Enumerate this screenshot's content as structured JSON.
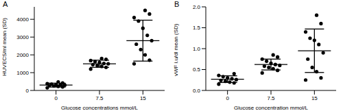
{
  "chart_data": [
    {
      "type": "scatter",
      "title": "A",
      "x_label": "Glucose concentrations mmol/L",
      "y_label": "HUVECS/ml mean (SD)",
      "categories": [
        "0",
        "7.5",
        "15"
      ],
      "values": [
        [
          150,
          200,
          230,
          260,
          280,
          300,
          310,
          330,
          350,
          380,
          420,
          480
        ],
        [
          1200,
          1300,
          1350,
          1400,
          1450,
          1500,
          1520,
          1580,
          1620,
          1680,
          1750,
          1800
        ],
        [
          1500,
          1700,
          2000,
          2300,
          2600,
          2800,
          3100,
          3500,
          3900,
          4100,
          4300,
          4500
        ]
      ],
      "mean": [
        300,
        1500,
        2800
      ],
      "sd": [
        110,
        200,
        1150
      ],
      "color": "#000000",
      "marker": "circle",
      "ylim": [
        0,
        4700
      ],
      "yticks": [
        0,
        1000,
        2000,
        3000,
        4000
      ],
      "grid": false
    },
    {
      "type": "scatter",
      "title": "B",
      "x_label": "Glucose concentration mmol/L",
      "y_label": "vWF i.u/dl mean (SD)",
      "categories": [
        "0",
        "7.5",
        "15"
      ],
      "values": [
        [
          0.15,
          0.18,
          0.2,
          0.22,
          0.24,
          0.26,
          0.28,
          0.3,
          0.33,
          0.36,
          0.4
        ],
        [
          0.42,
          0.48,
          0.52,
          0.55,
          0.58,
          0.6,
          0.62,
          0.65,
          0.7,
          0.75,
          0.8,
          0.85
        ],
        [
          0.25,
          0.3,
          0.45,
          0.55,
          0.75,
          0.9,
          1.1,
          1.2,
          1.25,
          1.4,
          1.6,
          1.8
        ]
      ],
      "mean": [
        0.27,
        0.62,
        0.95
      ],
      "sd": [
        0.08,
        0.13,
        0.52
      ],
      "color": "#000000",
      "marker": "circle",
      "ylim": [
        0,
        2.0
      ],
      "yticks": [
        {
          "value": 0,
          "label": "0.0"
        },
        {
          "value": 0.5,
          "label": "0.5"
        },
        {
          "value": 1.0,
          "label": "1.0"
        },
        {
          "value": 1.5,
          "label": "1.5"
        },
        {
          "value": 2.0,
          "label": "2.0"
        }
      ],
      "grid": false
    }
  ]
}
